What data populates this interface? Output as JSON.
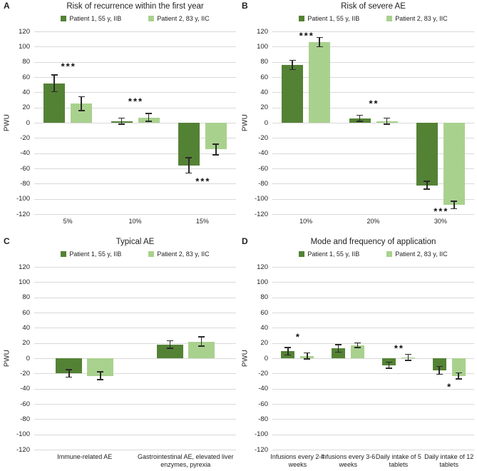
{
  "figure": {
    "colors": {
      "patient1": "#548235",
      "patient2": "#a9d18e",
      "gridline": "#d9d9d9",
      "error_bar": "#2b2b2b",
      "text": "#1f1f1f",
      "background": "#ffffff"
    }
  },
  "legend": {
    "items": [
      {
        "id": "patient1",
        "label": "Patient 1, 55 y, IIB",
        "color": "#548235"
      },
      {
        "id": "patient2",
        "label": "Patient 2, 83 y, IIC",
        "color": "#a9d18e"
      }
    ],
    "position": "top"
  },
  "axis": {
    "ylabel": "PWU",
    "ymin": -120,
    "ymax": 120,
    "ystep": 20,
    "grid": true
  },
  "chart_data": [
    {
      "panel": "A",
      "type": "bar",
      "title": "Risk of recurrence within the first year",
      "xlabel": "",
      "ylabel": "PWU",
      "ylim": [
        -120,
        120
      ],
      "grid": true,
      "legend_position": "top",
      "categories": [
        "5%",
        "10%",
        "15%"
      ],
      "series": [
        {
          "name": "Patient 1, 55 y, IIB",
          "values": [
            52,
            2,
            -56
          ],
          "errors": [
            11,
            4,
            10
          ]
        },
        {
          "name": "Patient 2, 83 y, IIC",
          "values": [
            25,
            7,
            -35
          ],
          "errors": [
            9,
            5,
            7
          ]
        }
      ],
      "annotations": [
        {
          "category": 0,
          "text": "***",
          "pwu": 74
        },
        {
          "category": 1,
          "text": "***",
          "pwu": 28
        },
        {
          "category": 2,
          "text": "***",
          "pwu": -77
        }
      ]
    },
    {
      "panel": "B",
      "type": "bar",
      "title": "Risk of severe AE",
      "xlabel": "",
      "ylabel": "PWU",
      "ylim": [
        -120,
        120
      ],
      "grid": true,
      "legend_position": "top",
      "categories": [
        "10%",
        "20%",
        "30%"
      ],
      "series": [
        {
          "name": "Patient 1, 55 y, IIB",
          "values": [
            76,
            6,
            -82
          ],
          "errors": [
            6,
            4,
            5
          ]
        },
        {
          "name": "Patient 2, 83 y, IIC",
          "values": [
            106,
            2,
            -108
          ],
          "errors": [
            6,
            4,
            5
          ]
        }
      ],
      "annotations": [
        {
          "category": 0,
          "text": "***",
          "pwu": 114
        },
        {
          "category": 1,
          "text": "**",
          "pwu": 25
        },
        {
          "category": 2,
          "text": "***",
          "pwu": -116
        }
      ]
    },
    {
      "panel": "C",
      "type": "bar",
      "title": "Typical AE",
      "xlabel": "",
      "ylabel": "PWU",
      "ylim": [
        -120,
        120
      ],
      "grid": true,
      "legend_position": "top",
      "categories": [
        "Immune-related AE",
        "Gastrointestinal AE, elevated liver enzymes, pyrexia"
      ],
      "series": [
        {
          "name": "Patient 1, 55 y, IIB",
          "values": [
            -20,
            18
          ],
          "errors": [
            5,
            5
          ]
        },
        {
          "name": "Patient 2, 83 y, IIC",
          "values": [
            -23,
            22
          ],
          "errors": [
            5,
            6
          ]
        }
      ],
      "annotations": []
    },
    {
      "panel": "D",
      "type": "bar",
      "title": "Mode and frequency of application",
      "xlabel": "",
      "ylabel": "PWU",
      "ylim": [
        -120,
        120
      ],
      "grid": true,
      "legend_position": "top",
      "categories": [
        "Infusions every 2-4 weeks",
        "Infusions every 3-6 weeks",
        "Daily intake of 5 tablets",
        "Daily intake of 12 tablets"
      ],
      "series": [
        {
          "name": "Patient 1, 55 y, IIB",
          "values": [
            9,
            13,
            -9,
            -16
          ],
          "errors": [
            5,
            5,
            4,
            5
          ]
        },
        {
          "name": "Patient 2, 83 y, IIC",
          "values": [
            3,
            17,
            1,
            -23
          ],
          "errors": [
            4,
            3,
            4,
            4
          ]
        }
      ],
      "annotations": [
        {
          "category": 0,
          "text": "*",
          "pwu": 28
        },
        {
          "category": 2,
          "text": "**",
          "pwu": 13
        },
        {
          "category": 3,
          "text": "*",
          "pwu": -37
        }
      ]
    }
  ]
}
